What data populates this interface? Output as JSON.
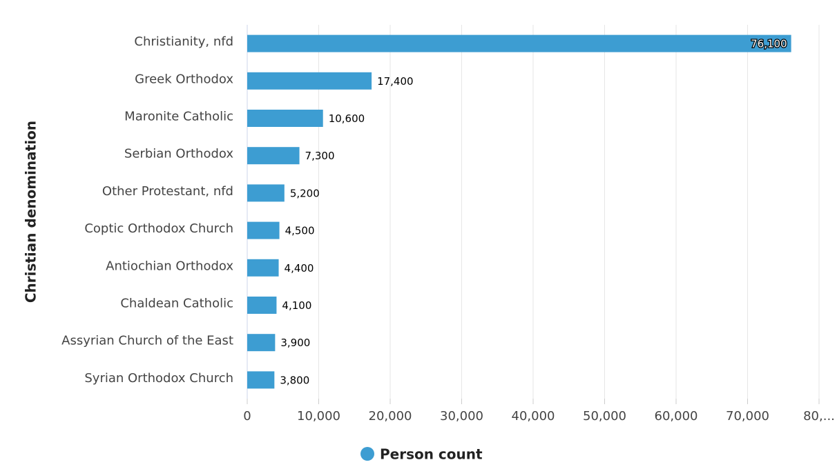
{
  "chart_data": {
    "type": "bar",
    "orientation": "horizontal",
    "y_axis_label": "Christian denomination",
    "categories": [
      "Christianity, nfd",
      "Greek Orthodox",
      "Maronite Catholic",
      "Serbian Orthodox",
      "Other Protestant, nfd",
      "Coptic Orthodox Church",
      "Antiochian Orthodox",
      "Chaldean Catholic",
      "Assyrian Church of the East",
      "Syrian Orthodox Church"
    ],
    "series": [
      {
        "name": "Person count",
        "color": "#3d9dd2",
        "values": [
          76100,
          17400,
          10600,
          7300,
          5200,
          4500,
          4400,
          4100,
          3900,
          3800
        ],
        "value_labels": [
          "76,100",
          "17,400",
          "10,600",
          "7,300",
          "5,200",
          "4,500",
          "4,400",
          "4,100",
          "3,900",
          "3,800"
        ]
      }
    ],
    "xlim": [
      0,
      80000
    ],
    "xticks": [
      0,
      {
        "value": 10000,
        "label": "10,000"
      },
      {
        "value": 20000,
        "label": "20,000"
      },
      {
        "value": 30000,
        "label": "30,000"
      },
      {
        "value": 40000,
        "label": "40,000"
      },
      {
        "value": 50000,
        "label": "50,000"
      },
      {
        "value": 60000,
        "label": "60,000"
      },
      {
        "value": 70000,
        "label": "70,000"
      },
      {
        "value": 80000,
        "label": "80,..."
      }
    ],
    "grid": true,
    "legend": "bottom"
  }
}
